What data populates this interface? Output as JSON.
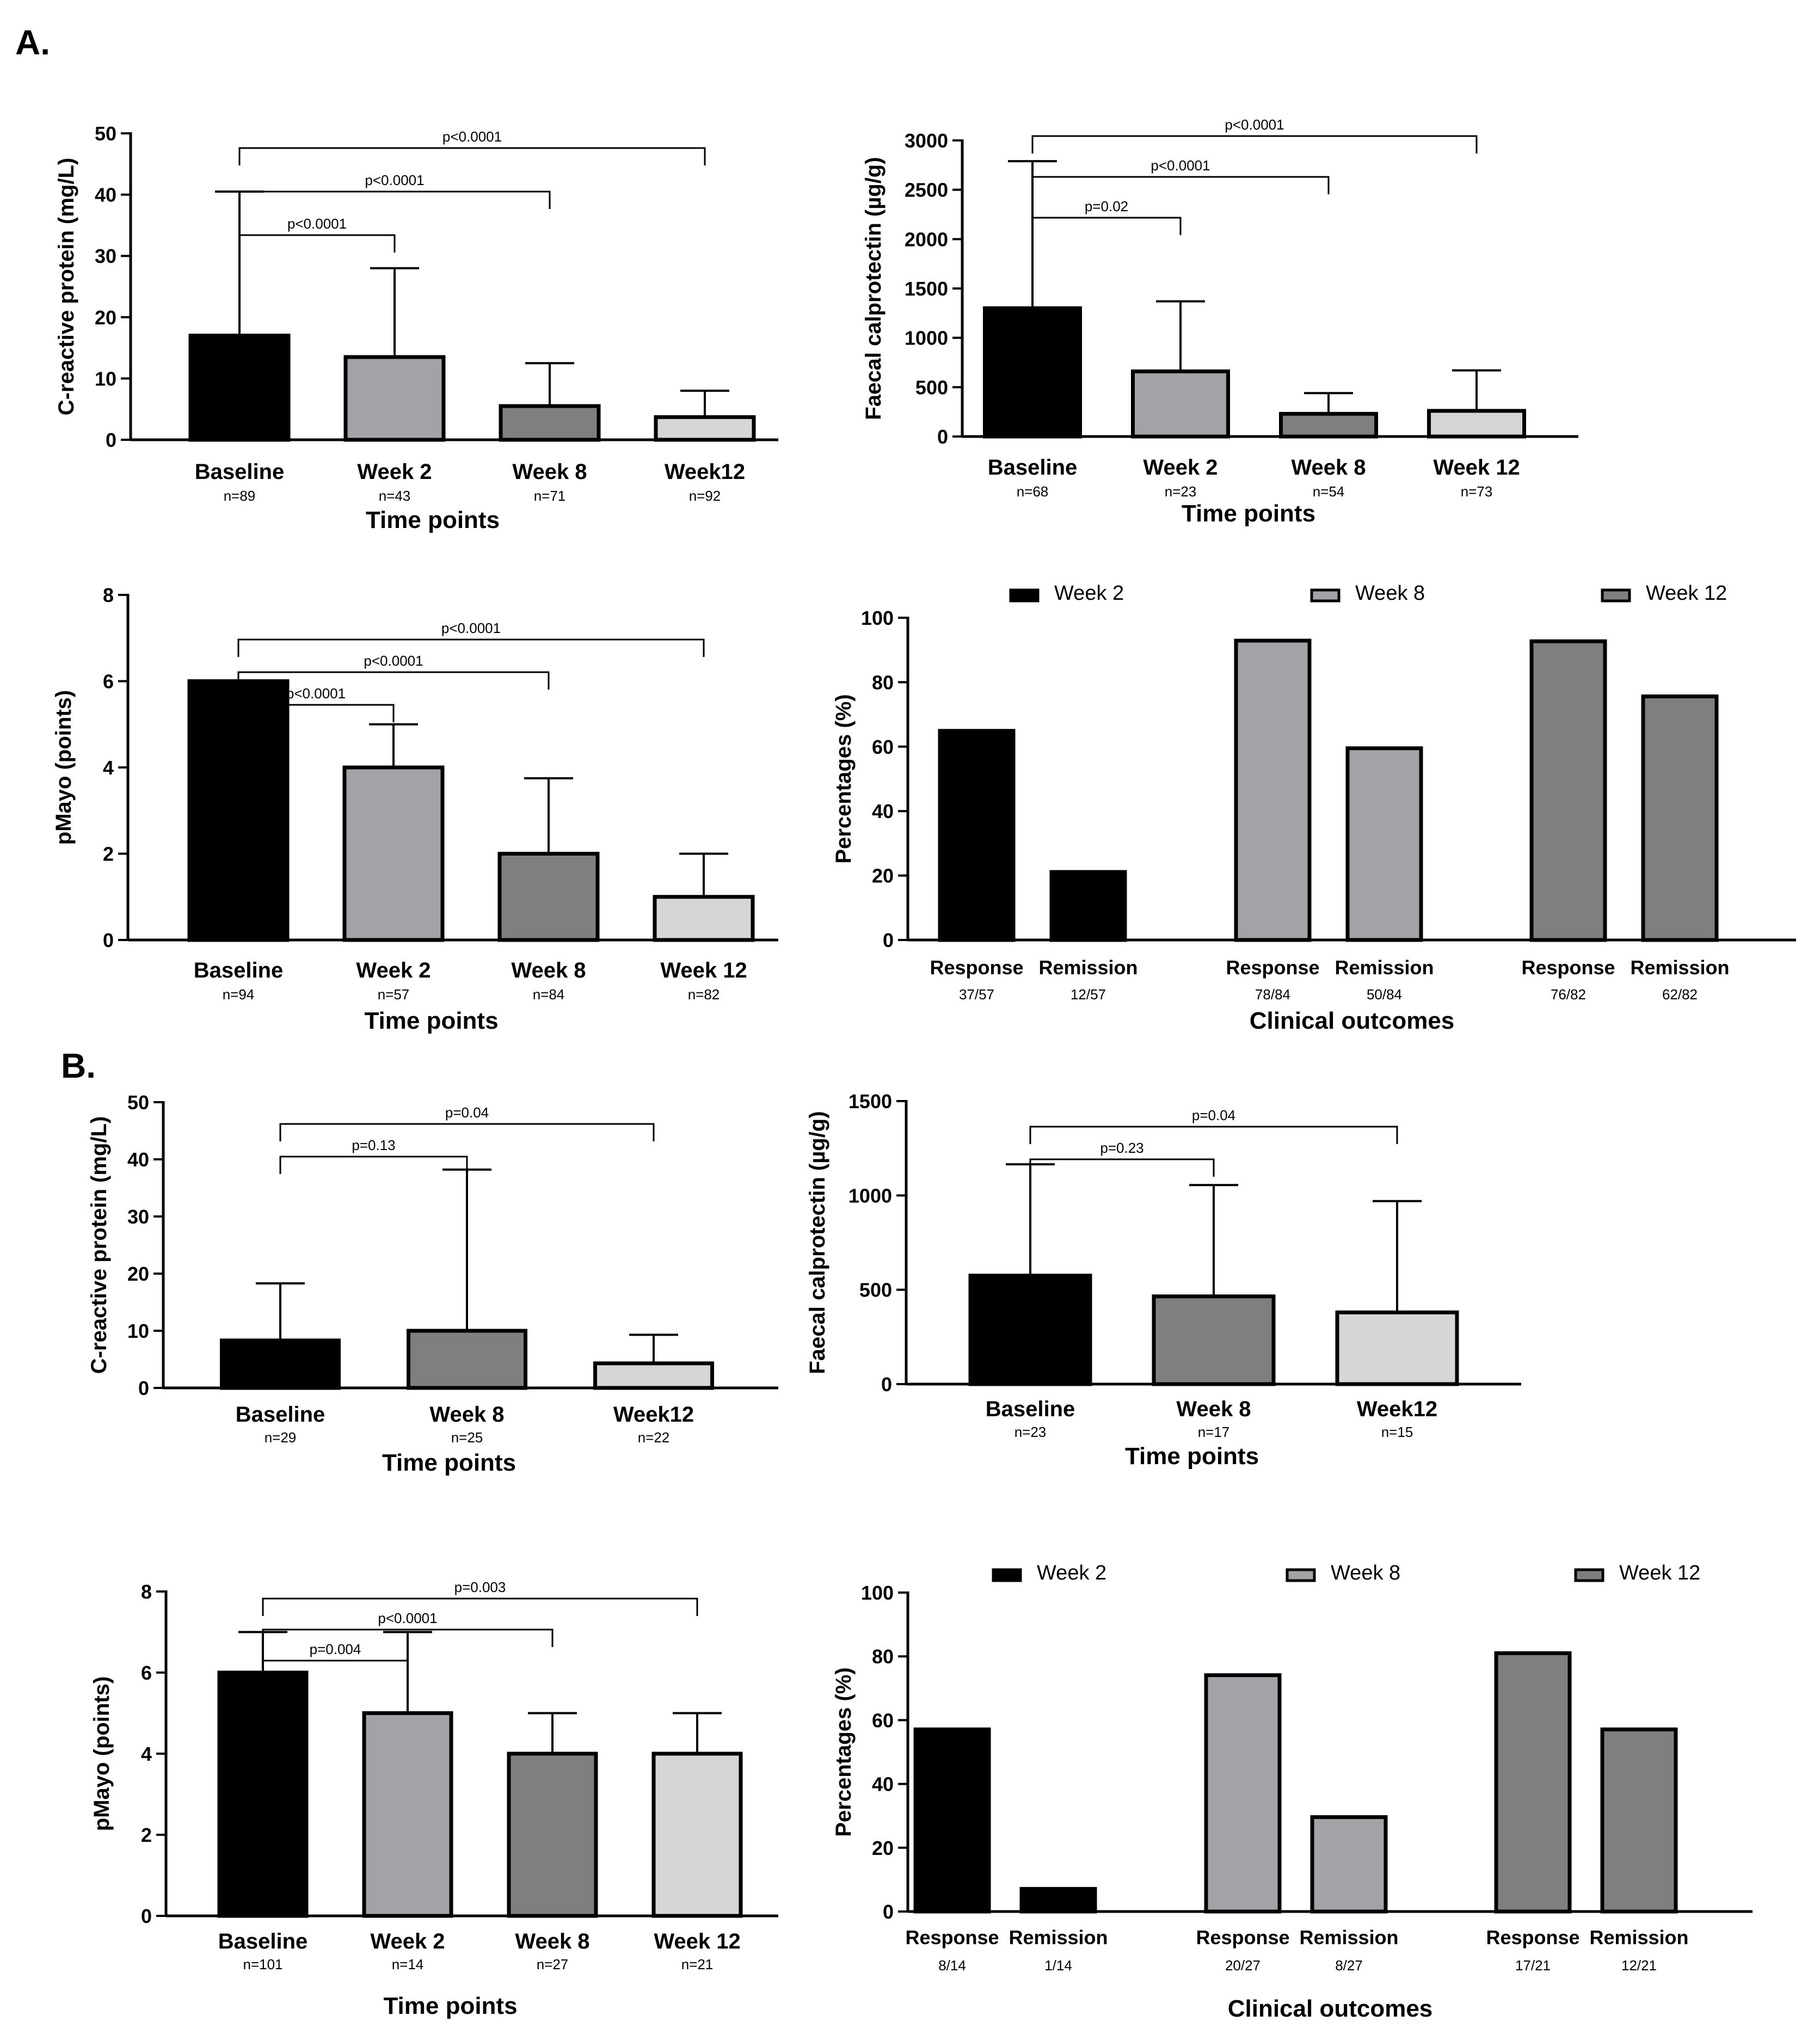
{
  "panels": [
    {
      "label": "A."
    },
    {
      "label": "B."
    }
  ],
  "chart_data": [
    {
      "type": "bar",
      "panel": "A",
      "id": "A-crp",
      "ylabel": "C-reactive protein (mg/L)",
      "xlabel": "Time points",
      "ylim": [
        0,
        50
      ],
      "yticks": [
        0,
        10,
        20,
        30,
        40,
        50
      ],
      "categories": [
        "Baseline",
        "Week 2",
        "Week 8",
        "Week12"
      ],
      "n_labels": [
        "n=89",
        "n=43",
        "n=71",
        "n=92"
      ],
      "values": [
        17,
        13.5,
        5.5,
        3.7
      ],
      "error_upper": [
        40.5,
        28,
        12.5,
        8
      ],
      "colors": [
        "#000000",
        "#a3a3a7",
        "#7f7f7f",
        "#d6d6d6"
      ],
      "comparisons": [
        {
          "from": 0,
          "to": 1,
          "label": "p<0.0001"
        },
        {
          "from": 0,
          "to": 2,
          "label": "p<0.0001"
        },
        {
          "from": 0,
          "to": 3,
          "label": "p<0.0001"
        }
      ]
    },
    {
      "type": "bar",
      "panel": "A",
      "id": "A-fc",
      "ylabel": "Faecal calprotectin (µg/g)",
      "xlabel": "Time points",
      "ylim": [
        0,
        3000
      ],
      "yticks": [
        0,
        500,
        1000,
        1500,
        2000,
        2500,
        3000
      ],
      "categories": [
        "Baseline",
        "Week 2",
        "Week 8",
        "Week 12"
      ],
      "n_labels": [
        "n=68",
        "n=23",
        "n=54",
        "n=73"
      ],
      "values": [
        1300,
        660,
        230,
        260
      ],
      "error_upper": [
        2790,
        1370,
        440,
        670
      ],
      "colors": [
        "#000000",
        "#a3a3a7",
        "#7f7f7f",
        "#d6d6d6"
      ],
      "comparisons": [
        {
          "from": 0,
          "to": 1,
          "label": "p=0.02"
        },
        {
          "from": 0,
          "to": 2,
          "label": "p<0.0001"
        },
        {
          "from": 0,
          "to": 3,
          "label": "p<0.0001"
        }
      ]
    },
    {
      "type": "bar",
      "panel": "A",
      "id": "A-pmayo",
      "ylabel": "pMayo (points)",
      "xlabel": "Time points",
      "ylim": [
        0,
        8
      ],
      "yticks": [
        0,
        2,
        4,
        6,
        8
      ],
      "categories": [
        "Baseline",
        "Week 2",
        "Week 8",
        "Week 12"
      ],
      "n_labels": [
        "n=94",
        "n=57",
        "n=84",
        "n=82"
      ],
      "values": [
        6,
        4,
        2,
        1
      ],
      "error_upper": [
        null,
        5,
        3.75,
        2
      ],
      "colors": [
        "#000000",
        "#a3a3a7",
        "#7f7f7f",
        "#d6d6d6"
      ],
      "comparisons": [
        {
          "from": 0,
          "to": 1,
          "label": "p<0.0001"
        },
        {
          "from": 0,
          "to": 2,
          "label": "p<0.0001"
        },
        {
          "from": 0,
          "to": 3,
          "label": "p<0.0001"
        }
      ]
    },
    {
      "type": "grouped-bar",
      "panel": "A",
      "id": "A-outcomes",
      "ylabel": "Percentages (%)",
      "xlabel": "Clinical outcomes",
      "ylim": [
        0,
        100
      ],
      "yticks": [
        0,
        20,
        40,
        60,
        80,
        100
      ],
      "legend": [
        {
          "name": "Week 2",
          "color": "#000000"
        },
        {
          "name": "Week 8",
          "color": "#a3a3a7"
        },
        {
          "name": "Week 12",
          "color": "#7f7f7f"
        }
      ],
      "groups": [
        {
          "series": "Week 2",
          "bars": [
            {
              "label": "Response",
              "fraction": "37/57",
              "value": 64.9
            },
            {
              "label": "Remission",
              "fraction": "12/57",
              "value": 21.1
            }
          ]
        },
        {
          "series": "Week 8",
          "bars": [
            {
              "label": "Response",
              "fraction": "78/84",
              "value": 92.9
            },
            {
              "label": "Remission",
              "fraction": "50/84",
              "value": 59.5
            }
          ]
        },
        {
          "series": "Week 12",
          "bars": [
            {
              "label": "Response",
              "fraction": "76/82",
              "value": 92.7
            },
            {
              "label": "Remission",
              "fraction": "62/82",
              "value": 75.6
            }
          ]
        }
      ]
    },
    {
      "type": "bar",
      "panel": "B",
      "id": "B-crp",
      "ylabel": "C-reactive protein (mg/L)",
      "xlabel": "Time points",
      "ylim": [
        0,
        50
      ],
      "yticks": [
        0,
        10,
        20,
        30,
        40,
        50
      ],
      "categories": [
        "Baseline",
        "Week 8",
        "Week12"
      ],
      "n_labels": [
        "n=29",
        "n=25",
        "n=22"
      ],
      "values": [
        8.3,
        10,
        4.3
      ],
      "error_upper": [
        18.3,
        38.2,
        9.3
      ],
      "colors": [
        "#000000",
        "#7f7f7f",
        "#d6d6d6"
      ],
      "comparisons": [
        {
          "from": 0,
          "to": 1,
          "label": "p=0.13"
        },
        {
          "from": 0,
          "to": 2,
          "label": "p=0.04"
        }
      ]
    },
    {
      "type": "bar",
      "panel": "B",
      "id": "B-fc",
      "ylabel": "Faecal calprotectin (µg/g)",
      "xlabel": "Time points",
      "ylim": [
        0,
        1500
      ],
      "yticks": [
        0,
        500,
        1000,
        1500
      ],
      "categories": [
        "Baseline",
        "Week 8",
        "Week12"
      ],
      "n_labels": [
        "n=23",
        "n=17",
        "n=15"
      ],
      "values": [
        575,
        465,
        380
      ],
      "error_upper": [
        1165,
        1055,
        970
      ],
      "colors": [
        "#000000",
        "#7f7f7f",
        "#d6d6d6"
      ],
      "comparisons": [
        {
          "from": 0,
          "to": 1,
          "label": "p=0.23"
        },
        {
          "from": 0,
          "to": 2,
          "label": "p=0.04"
        }
      ]
    },
    {
      "type": "bar",
      "panel": "B",
      "id": "B-pmayo",
      "ylabel": "pMayo (points)",
      "xlabel": "Time points",
      "ylim": [
        0,
        8
      ],
      "yticks": [
        0,
        2,
        4,
        6,
        8
      ],
      "categories": [
        "Baseline",
        "Week 2",
        "Week 8",
        "Week 12"
      ],
      "n_labels": [
        "n=101",
        "n=14",
        "n=27",
        "n=21"
      ],
      "values": [
        6,
        5,
        4,
        4
      ],
      "error_upper": [
        7,
        7,
        5,
        5
      ],
      "colors": [
        "#000000",
        "#a3a3a7",
        "#7f7f7f",
        "#d6d6d6"
      ],
      "comparisons": [
        {
          "from": 0,
          "to": 1,
          "label": "p=0.004"
        },
        {
          "from": 0,
          "to": 2,
          "label": "p<0.0001"
        },
        {
          "from": 0,
          "to": 3,
          "label": "p=0.003"
        }
      ]
    },
    {
      "type": "grouped-bar",
      "panel": "B",
      "id": "B-outcomes",
      "ylabel": "Percentages (%)",
      "xlabel": "Clinical outcomes",
      "ylim": [
        0,
        100
      ],
      "yticks": [
        0,
        20,
        40,
        60,
        80,
        100
      ],
      "legend": [
        {
          "name": "Week 2",
          "color": "#000000"
        },
        {
          "name": "Week 8",
          "color": "#a3a3a7"
        },
        {
          "name": "Week 12",
          "color": "#7f7f7f"
        }
      ],
      "groups": [
        {
          "series": "Week 2",
          "bars": [
            {
              "label": "Response",
              "fraction": "8/14",
              "value": 57.1
            },
            {
              "label": "Remission",
              "fraction": "1/14",
              "value": 7.1
            }
          ]
        },
        {
          "series": "Week 8",
          "bars": [
            {
              "label": "Response",
              "fraction": "20/27",
              "value": 74.1
            },
            {
              "label": "Remission",
              "fraction": "8/27",
              "value": 29.6
            }
          ]
        },
        {
          "series": "Week 12",
          "bars": [
            {
              "label": "Response",
              "fraction": "17/21",
              "value": 81.0
            },
            {
              "label": "Remission",
              "fraction": "12/21",
              "value": 57.1
            }
          ]
        }
      ]
    }
  ]
}
